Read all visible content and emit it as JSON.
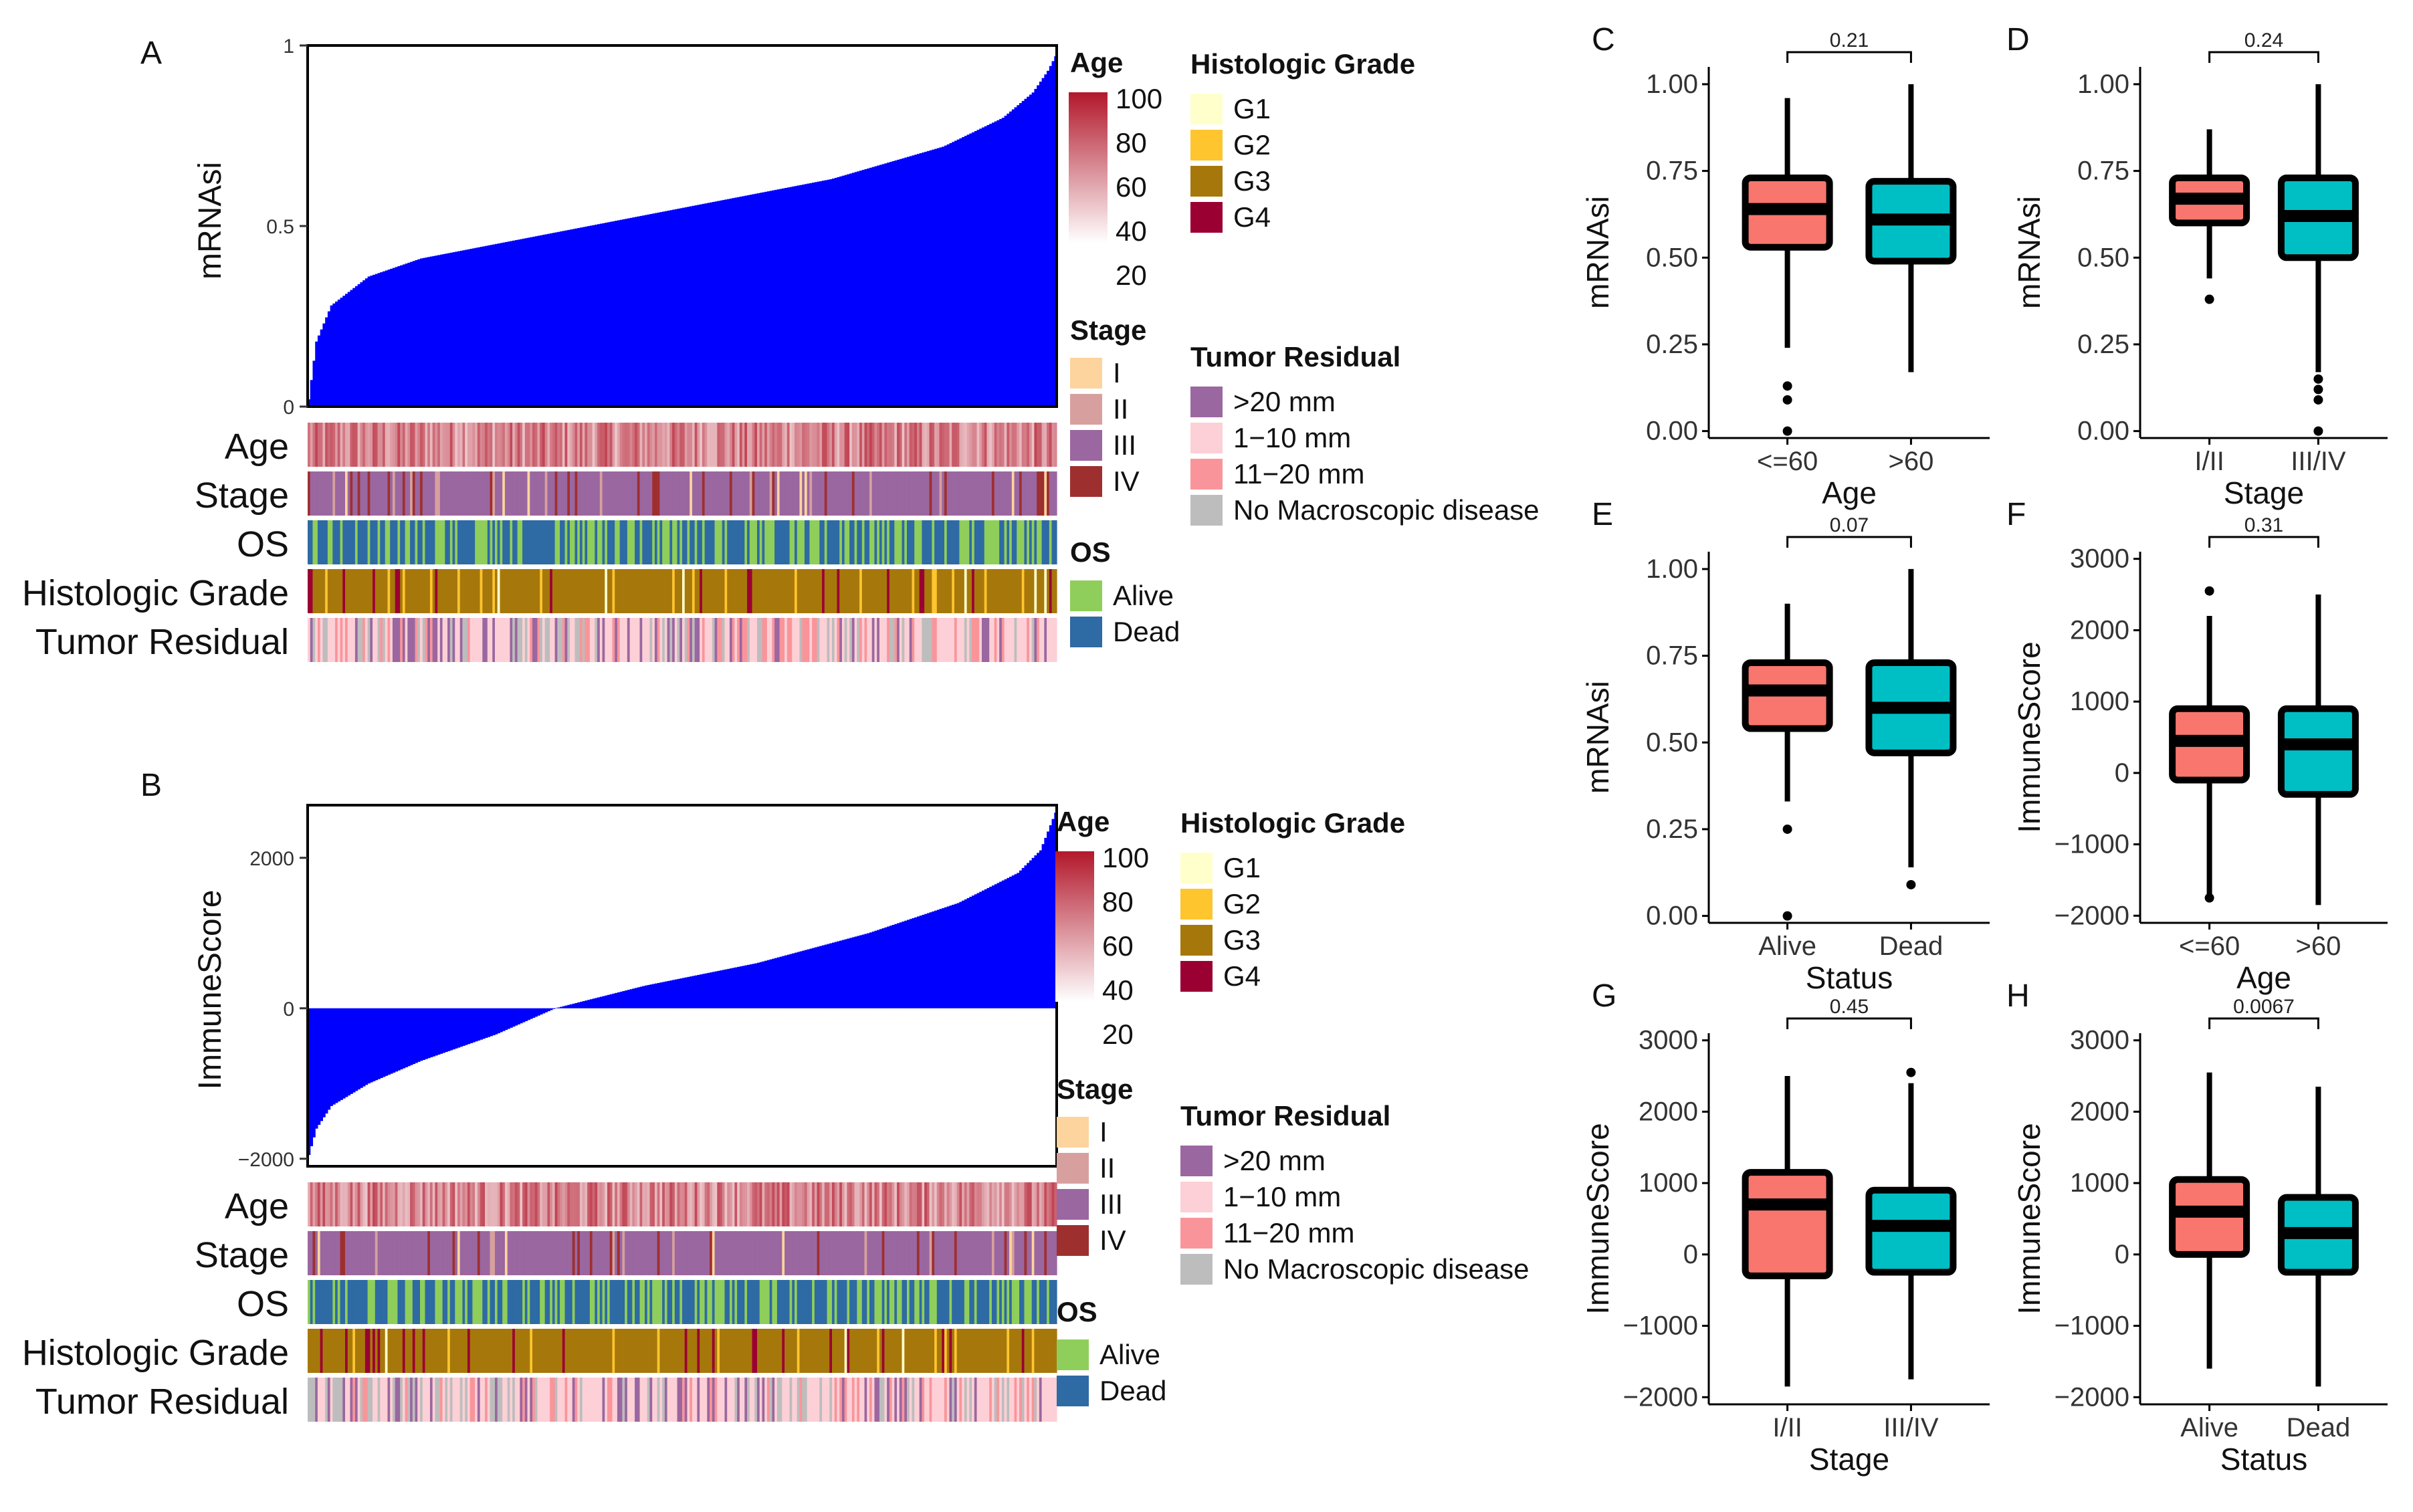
{
  "panel_letters": [
    "A",
    "B",
    "C",
    "D",
    "E",
    "F",
    "G",
    "H"
  ],
  "heatmap_rows": [
    "Age",
    "Stage",
    "OS",
    "Histologic Grade",
    "Tumor Residual"
  ],
  "legend": {
    "age": {
      "title": "Age",
      "ticks": [
        "100",
        "80",
        "60",
        "40",
        "20"
      ],
      "colors": [
        "#b2182b",
        "#ffffff"
      ]
    },
    "histologic_grade": {
      "title": "Histologic Grade",
      "items": [
        {
          "label": "G1",
          "color": "#ffffcc"
        },
        {
          "label": "G2",
          "color": "#fec52f"
        },
        {
          "label": "G3",
          "color": "#a6780b"
        },
        {
          "label": "G4",
          "color": "#9b0033"
        }
      ]
    },
    "stage": {
      "title": "Stage",
      "items": [
        {
          "label": "I",
          "color": "#fdd49e"
        },
        {
          "label": "II",
          "color": "#d7a09e"
        },
        {
          "label": "III",
          "color": "#9a67a0"
        },
        {
          "label": "IV",
          "color": "#9e2f2f"
        }
      ]
    },
    "tumor_residual": {
      "title": "Tumor Residual",
      "items": [
        {
          "label": ">20 mm",
          "color": "#9a67a0"
        },
        {
          "label": "1−10 mm",
          "color": "#fcd0d6"
        },
        {
          "label": "11−20 mm",
          "color": "#f9959a"
        },
        {
          "label": "No Macroscopic disease",
          "color": "#bdbdbd"
        }
      ]
    },
    "os": {
      "title": "OS",
      "items": [
        {
          "label": "Alive",
          "color": "#8fce5a"
        },
        {
          "label": "Dead",
          "color": "#2e6aa3"
        }
      ]
    }
  },
  "chart_data": [
    {
      "id": "A",
      "type": "bar",
      "description_series": "sorted mRNAsi per sample",
      "ylabel": "mRNAsi",
      "ylim": [
        0,
        1.0
      ],
      "yticks": [
        0,
        0.5,
        1
      ],
      "ytick_labels": [
        "0",
        "0.5",
        "1"
      ],
      "x_count": 300,
      "quantile_points": [
        [
          0,
          0.02
        ],
        [
          0.01,
          0.18
        ],
        [
          0.03,
          0.28
        ],
        [
          0.08,
          0.36
        ],
        [
          0.15,
          0.41
        ],
        [
          0.3,
          0.47
        ],
        [
          0.5,
          0.55
        ],
        [
          0.7,
          0.63
        ],
        [
          0.85,
          0.72
        ],
        [
          0.93,
          0.8
        ],
        [
          0.97,
          0.87
        ],
        [
          0.99,
          0.93
        ],
        [
          1.0,
          0.97
        ]
      ],
      "bar_color": "#0000ff"
    },
    {
      "id": "B",
      "type": "bar",
      "ylabel": "ImmuneScore",
      "ylim": [
        -2100,
        2700
      ],
      "yticks": [
        -2000,
        0,
        2000
      ],
      "ytick_labels": [
        "−2000",
        "0",
        "2000"
      ],
      "x_count": 300,
      "quantile_points": [
        [
          0,
          -1950
        ],
        [
          0.01,
          -1600
        ],
        [
          0.03,
          -1300
        ],
        [
          0.08,
          -1000
        ],
        [
          0.15,
          -700
        ],
        [
          0.25,
          -350
        ],
        [
          0.33,
          0
        ],
        [
          0.45,
          300
        ],
        [
          0.6,
          600
        ],
        [
          0.75,
          1000
        ],
        [
          0.87,
          1400
        ],
        [
          0.95,
          1800
        ],
        [
          0.98,
          2100
        ],
        [
          1.0,
          2600
        ]
      ],
      "bar_color": "#0000ff"
    },
    {
      "id": "C",
      "type": "boxplot",
      "xlabel": "Age",
      "ylabel": "mRNAsi",
      "categories": [
        "<=60",
        ">60"
      ],
      "ylim": [
        -0.02,
        1.05
      ],
      "yticks": [
        0,
        0.25,
        0.5,
        0.75,
        1.0
      ],
      "ytick_labels": [
        "0.00",
        "0.25",
        "0.50",
        "0.75",
        "1.00"
      ],
      "p_value": "0.21",
      "boxes": [
        {
          "q1": 0.53,
          "median": 0.64,
          "q3": 0.73,
          "low": 0.24,
          "high": 0.96,
          "outliers": [
            0.13,
            0.09,
            0.0
          ],
          "color": "#f8766d"
        },
        {
          "q1": 0.49,
          "median": 0.61,
          "q3": 0.72,
          "low": 0.17,
          "high": 1.0,
          "outliers": [],
          "color": "#00bfc4"
        }
      ]
    },
    {
      "id": "D",
      "type": "boxplot",
      "xlabel": "Stage",
      "ylabel": "mRNAsi",
      "categories": [
        "I/II",
        "III/IV"
      ],
      "ylim": [
        -0.02,
        1.05
      ],
      "yticks": [
        0,
        0.25,
        0.5,
        0.75,
        1.0
      ],
      "ytick_labels": [
        "0.00",
        "0.25",
        "0.50",
        "0.75",
        "1.00"
      ],
      "p_value": "0.24",
      "boxes": [
        {
          "q1": 0.6,
          "median": 0.67,
          "q3": 0.73,
          "low": 0.44,
          "high": 0.87,
          "outliers": [
            0.38
          ],
          "color": "#f8766d"
        },
        {
          "q1": 0.5,
          "median": 0.62,
          "q3": 0.73,
          "low": 0.17,
          "high": 1.0,
          "outliers": [
            0.15,
            0.12,
            0.09,
            0.0
          ],
          "color": "#00bfc4"
        }
      ]
    },
    {
      "id": "E",
      "type": "boxplot",
      "xlabel": "Status",
      "ylabel": "mRNAsi",
      "categories": [
        "Alive",
        "Dead"
      ],
      "ylim": [
        -0.02,
        1.05
      ],
      "yticks": [
        0,
        0.25,
        0.5,
        0.75,
        1.0
      ],
      "ytick_labels": [
        "0.00",
        "0.25",
        "0.50",
        "0.75",
        "1.00"
      ],
      "p_value": "0.07",
      "boxes": [
        {
          "q1": 0.54,
          "median": 0.65,
          "q3": 0.73,
          "low": 0.33,
          "high": 0.9,
          "outliers": [
            0.25,
            0.0
          ],
          "color": "#f8766d"
        },
        {
          "q1": 0.47,
          "median": 0.6,
          "q3": 0.73,
          "low": 0.14,
          "high": 1.0,
          "outliers": [
            0.09
          ],
          "color": "#00bfc4"
        }
      ]
    },
    {
      "id": "F",
      "type": "boxplot",
      "xlabel": "Age",
      "ylabel": "ImmuneScore",
      "categories": [
        "<=60",
        ">60"
      ],
      "ylim": [
        -2100,
        3100
      ],
      "yticks": [
        -2000,
        -1000,
        0,
        1000,
        2000,
        3000
      ],
      "ytick_labels": [
        "−2000",
        "−1000",
        "0",
        "1000",
        "2000",
        "3000"
      ],
      "p_value": "0.31",
      "boxes": [
        {
          "q1": -100,
          "median": 450,
          "q3": 900,
          "low": -1700,
          "high": 2200,
          "outliers": [
            2550,
            -1750
          ],
          "color": "#f8766d"
        },
        {
          "q1": -300,
          "median": 400,
          "q3": 900,
          "low": -1850,
          "high": 2500,
          "outliers": [],
          "color": "#00bfc4"
        }
      ]
    },
    {
      "id": "G",
      "type": "boxplot",
      "xlabel": "Stage",
      "ylabel": "ImmuneScore",
      "categories": [
        "I/II",
        "III/IV"
      ],
      "ylim": [
        -2100,
        3100
      ],
      "yticks": [
        -2000,
        -1000,
        0,
        1000,
        2000,
        3000
      ],
      "ytick_labels": [
        "−2000",
        "−1000",
        "0",
        "1000",
        "2000",
        "3000"
      ],
      "p_value": "0.45",
      "boxes": [
        {
          "q1": -300,
          "median": 700,
          "q3": 1150,
          "low": -1850,
          "high": 2500,
          "outliers": [],
          "color": "#f8766d"
        },
        {
          "q1": -250,
          "median": 400,
          "q3": 900,
          "low": -1750,
          "high": 2400,
          "outliers": [
            2550
          ],
          "color": "#00bfc4"
        }
      ]
    },
    {
      "id": "H",
      "type": "boxplot",
      "xlabel": "Status",
      "ylabel": "ImmuneScore",
      "categories": [
        "Alive",
        "Dead"
      ],
      "ylim": [
        -2100,
        3100
      ],
      "yticks": [
        -2000,
        -1000,
        0,
        1000,
        2000,
        3000
      ],
      "ytick_labels": [
        "−2000",
        "−1000",
        "0",
        "1000",
        "2000",
        "3000"
      ],
      "p_value": "0.0067",
      "boxes": [
        {
          "q1": 0,
          "median": 600,
          "q3": 1050,
          "low": -1600,
          "high": 2550,
          "outliers": [],
          "color": "#f8766d"
        },
        {
          "q1": -250,
          "median": 300,
          "q3": 800,
          "low": -1850,
          "high": 2350,
          "outliers": [],
          "color": "#00bfc4"
        }
      ]
    }
  ]
}
